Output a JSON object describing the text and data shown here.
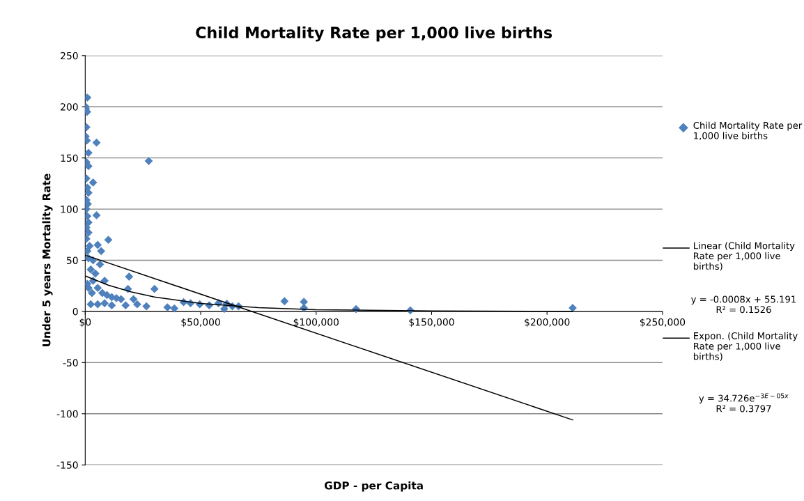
{
  "chart_data": {
    "type": "scatter",
    "title": "Child Mortality Rate per 1,000 live births",
    "xlabel": "GDP - per Capita",
    "ylabel": "Under 5 years Mortality Rate",
    "xlim": [
      0,
      250000
    ],
    "xticks": [
      {
        "value": 0,
        "label": "$0"
      },
      {
        "value": 50000,
        "label": "$50,000"
      },
      {
        "value": 100000,
        "label": "$100,000"
      },
      {
        "value": 150000,
        "label": "$150,000"
      },
      {
        "value": 200000,
        "label": "$200,000"
      },
      {
        "value": 250000,
        "label": "$250,000"
      }
    ],
    "ylim": [
      -150,
      250
    ],
    "yticks": [
      -150,
      -100,
      -50,
      0,
      50,
      100,
      150,
      200,
      250
    ],
    "grid": "y",
    "legend": "right",
    "series": [
      {
        "name": "Child Mortality Rate per 1,000 live births",
        "marker": "diamond",
        "color": "#4f81bd",
        "x": [
          900,
          200,
          800,
          300,
          500,
          200,
          700,
          4900,
          1400,
          27500,
          500,
          1400,
          500,
          3400,
          900,
          1400,
          500,
          1100,
          500,
          900,
          1400,
          500,
          4900,
          1400,
          500,
          1900,
          10000,
          5400,
          6900,
          900,
          1400,
          19000,
          8400,
          30000,
          18500,
          20900,
          42600,
          45600,
          49600,
          53700,
          26500,
          35600,
          38600,
          60200,
          63700,
          57700,
          2400,
          3400,
          5400,
          7400,
          9400,
          11500,
          13500,
          15500,
          5400,
          8400,
          11500,
          17500,
          22500,
          2900,
          1400,
          900,
          4400,
          6400,
          3400,
          2400,
          86300,
          94700,
          94700,
          117300,
          140800,
          211100,
          66400,
          61300
        ],
        "values": [
          209,
          200,
          195,
          198,
          180,
          171,
          167,
          165,
          155,
          147,
          146,
          142,
          130,
          126,
          121,
          116,
          109,
          105,
          100,
          93,
          87,
          82,
          94,
          77,
          71,
          64,
          70,
          65,
          59,
          59,
          52,
          34,
          30,
          22,
          22,
          12,
          9,
          8,
          7,
          6,
          5,
          4,
          3,
          2.5,
          5,
          8,
          41,
          30,
          23,
          18,
          16,
          14,
          13,
          12,
          7,
          8,
          6,
          6,
          7,
          18,
          23,
          27,
          37,
          46,
          50,
          7,
          10,
          9.4,
          3.4,
          2.3,
          1,
          3.4,
          5,
          7.5
        ]
      },
      {
        "name": "Linear (Child Mortality Rate per 1,000 live births)",
        "type": "line",
        "marker": "none",
        "color": "#000000",
        "x": [
          0,
          211100
        ],
        "values": [
          55,
          -106
        ]
      },
      {
        "name": "Expon. (Child Mortality Rate per 1,000 live births)",
        "type": "line",
        "marker": "none",
        "color": "#000000",
        "x": [
          0,
          10000,
          20000,
          30000,
          50000,
          75000,
          100000,
          150000,
          211100
        ],
        "values": [
          34.7,
          25.7,
          19,
          14.1,
          7.8,
          3.7,
          1.7,
          0.4,
          0.1
        ]
      }
    ],
    "annotations": [
      "y = -0.0008x + 55.191\nR² = 0.1526",
      "y = 34.726e$^{−3E−05x}$\nR² = 0.3797"
    ]
  }
}
